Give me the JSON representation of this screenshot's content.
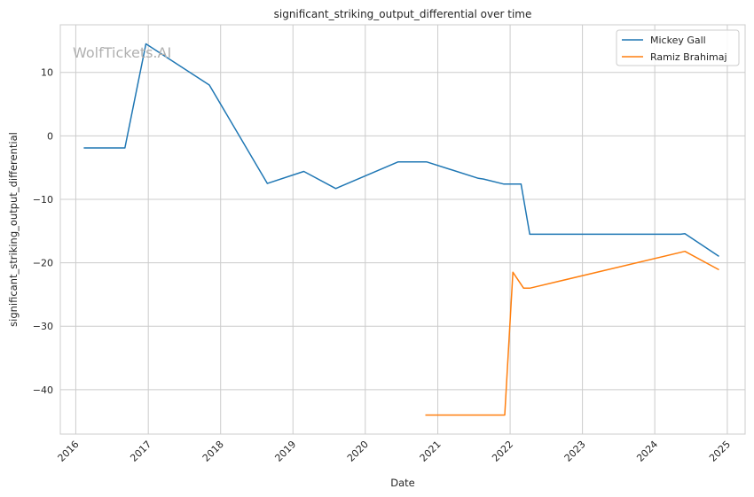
{
  "chart_data": {
    "type": "line",
    "title": "significant_striking_output_differential over time",
    "xlabel": "Date",
    "ylabel": "significant_striking_output_differential",
    "xlim": [
      "2015-10-15",
      "2025-04-01"
    ],
    "ylim": [
      -47,
      17.5
    ],
    "xticks": [
      "2016",
      "2017",
      "2018",
      "2019",
      "2020",
      "2021",
      "2022",
      "2023",
      "2024",
      "2025"
    ],
    "yticks": [
      10,
      0,
      -10,
      -20,
      -30,
      -40
    ],
    "ytick_labels": [
      "10",
      "0",
      "−10",
      "−20",
      "−30",
      "−40"
    ],
    "grid": true,
    "legend": "top-right",
    "watermark": "WolfTickets.AI",
    "series": [
      {
        "name": "Mickey Gall",
        "color": "#1f77b4",
        "points": [
          [
            "2016-02-10",
            -1.9
          ],
          [
            "2016-09-05",
            -1.9
          ],
          [
            "2016-12-20",
            14.5
          ],
          [
            "2017-11-05",
            8.0
          ],
          [
            "2018-08-25",
            -7.5
          ],
          [
            "2019-02-25",
            -5.6
          ],
          [
            "2019-08-05",
            -8.3
          ],
          [
            "2020-06-15",
            -4.1
          ],
          [
            "2020-11-05",
            -4.1
          ],
          [
            "2021-07-25",
            -6.7
          ],
          [
            "2021-08-20",
            -6.8
          ],
          [
            "2021-12-01",
            -7.6
          ],
          [
            "2022-02-25",
            -7.6
          ],
          [
            "2022-04-10",
            -15.5
          ],
          [
            "2024-05-10",
            -15.5
          ],
          [
            "2024-06-01",
            -15.4
          ],
          [
            "2024-11-20",
            -19.0
          ]
        ]
      },
      {
        "name": "Ramiz Brahimaj",
        "color": "#ff7f0e",
        "points": [
          [
            "2020-10-30",
            -44.0
          ],
          [
            "2021-12-05",
            -44.0
          ],
          [
            "2022-01-15",
            -21.5
          ],
          [
            "2022-03-10",
            -24.0
          ],
          [
            "2022-04-10",
            -24.0
          ],
          [
            "2024-06-01",
            -18.2
          ],
          [
            "2024-11-20",
            -21.1
          ]
        ]
      }
    ]
  }
}
